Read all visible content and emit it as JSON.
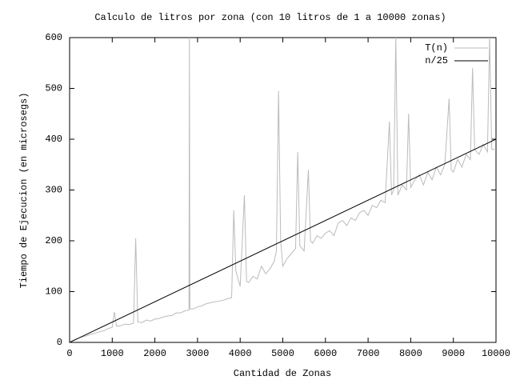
{
  "chart_data": {
    "type": "line",
    "title": "Calculo de litros por zona (con 10 litros de 1 a 10000 zonas)",
    "x_label": "Cantidad de Zonas",
    "y_label": "Tiempo de Ejecucion (en microsegs)",
    "xlim": [
      0,
      10000
    ],
    "ylim": [
      0,
      600
    ],
    "xticks": [
      0,
      1000,
      2000,
      3000,
      4000,
      5000,
      6000,
      7000,
      8000,
      9000,
      10000
    ],
    "yticks": [
      0,
      100,
      200,
      300,
      400,
      500,
      600
    ],
    "legend": "top-right",
    "series": [
      {
        "name": "T(n)",
        "color": "#bbbbbb",
        "x": [
          0,
          100,
          200,
          300,
          400,
          500,
          600,
          700,
          800,
          900,
          1000,
          1050,
          1100,
          1200,
          1300,
          1400,
          1500,
          1550,
          1600,
          1700,
          1800,
          1900,
          2000,
          2100,
          2200,
          2300,
          2400,
          2500,
          2600,
          2700,
          2800,
          2810,
          2820,
          2900,
          3000,
          3100,
          3200,
          3300,
          3400,
          3500,
          3600,
          3700,
          3800,
          3850,
          3900,
          4000,
          4100,
          4150,
          4200,
          4300,
          4400,
          4500,
          4600,
          4700,
          4800,
          4850,
          4900,
          4950,
          5000,
          5100,
          5200,
          5300,
          5350,
          5400,
          5500,
          5600,
          5650,
          5700,
          5800,
          5900,
          6000,
          6100,
          6200,
          6300,
          6400,
          6500,
          6600,
          6700,
          6800,
          6900,
          7000,
          7100,
          7200,
          7300,
          7400,
          7500,
          7550,
          7600,
          7650,
          7700,
          7800,
          7900,
          7950,
          8000,
          8100,
          8200,
          8300,
          8400,
          8500,
          8600,
          8700,
          8800,
          8900,
          8950,
          9000,
          9100,
          9200,
          9300,
          9400,
          9450,
          9500,
          9600,
          9700,
          9800,
          9850,
          9900,
          10000
        ],
        "values": [
          0,
          5,
          8,
          11,
          13,
          16,
          18,
          21,
          23,
          27,
          30,
          60,
          32,
          33,
          36,
          35,
          38,
          205,
          40,
          39,
          44,
          42,
          46,
          47,
          50,
          52,
          53,
          58,
          58,
          62,
          64,
          600,
          66,
          66,
          70,
          72,
          76,
          78,
          80,
          81,
          83,
          86,
          88,
          260,
          140,
          110,
          290,
          120,
          118,
          130,
          125,
          150,
          135,
          145,
          160,
          180,
          495,
          200,
          150,
          165,
          175,
          185,
          375,
          190,
          180,
          340,
          200,
          195,
          210,
          205,
          215,
          220,
          210,
          235,
          240,
          230,
          245,
          240,
          255,
          260,
          250,
          270,
          265,
          280,
          275,
          435,
          290,
          300,
          600,
          290,
          310,
          300,
          450,
          305,
          320,
          330,
          310,
          335,
          320,
          345,
          330,
          350,
          480,
          340,
          335,
          360,
          345,
          370,
          360,
          540,
          380,
          370,
          390,
          375,
          600,
          380,
          380
        ]
      },
      {
        "name": "n/25",
        "color": "#000000",
        "x": [
          0,
          10000
        ],
        "values": [
          0,
          400
        ]
      }
    ]
  }
}
